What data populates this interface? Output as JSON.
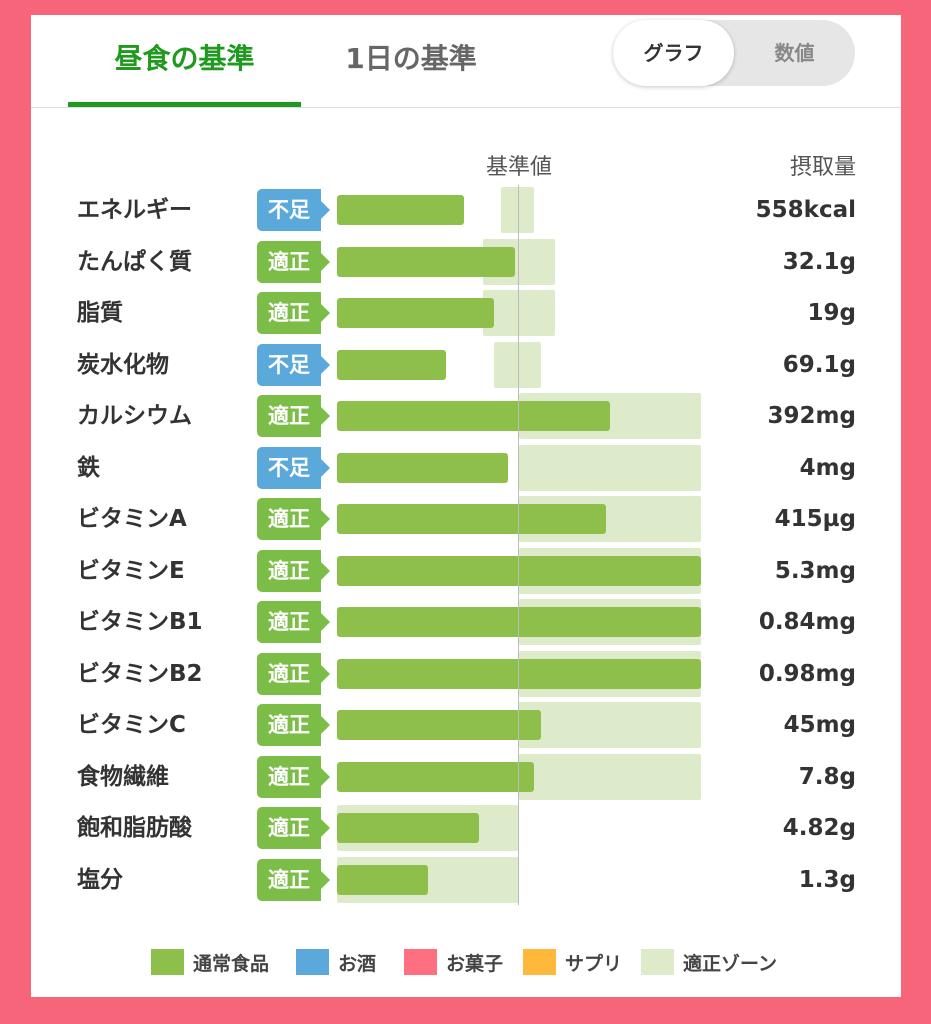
{
  "tabs": [
    {
      "label": "昼食の基準",
      "active": true
    },
    {
      "label": "1日の基準",
      "active": false
    }
  ],
  "view_toggle": {
    "graph_label": "グラフ",
    "number_label": "数値",
    "selected": "グラフ"
  },
  "column_headers": {
    "baseline": "基準値",
    "intake": "摂取量"
  },
  "colors": {
    "accent_green": "#1f9a1f",
    "regular_food": "#8fbf4b",
    "alcohol": "#5ba8db",
    "sweets": "#ff6f7f",
    "supplement": "#ffb93a",
    "target_zone": "#ddebcb",
    "status_ok": "#7cbd47",
    "status_low": "#5ba8db"
  },
  "nutrients": [
    {
      "name": "エネルギー",
      "status": "不足",
      "status_type": "low",
      "intake": "558kcal",
      "fill_percent": 35,
      "zone_percent": [
        45,
        54
      ]
    },
    {
      "name": "たんぱく質",
      "status": "適正",
      "status_type": "ok",
      "intake": "32.1g",
      "fill_percent": 49,
      "zone_percent": [
        40,
        60
      ]
    },
    {
      "name": "脂質",
      "status": "適正",
      "status_type": "ok",
      "intake": "19g",
      "fill_percent": 43,
      "zone_percent": [
        40,
        60
      ]
    },
    {
      "name": "炭水化物",
      "status": "不足",
      "status_type": "low",
      "intake": "69.1g",
      "fill_percent": 30,
      "zone_percent": [
        43,
        56
      ]
    },
    {
      "name": "カルシウム",
      "status": "適正",
      "status_type": "ok",
      "intake": "392mg",
      "fill_percent": 75,
      "zone_percent": [
        50,
        100
      ]
    },
    {
      "name": "鉄",
      "status": "不足",
      "status_type": "low",
      "intake": "4mg",
      "fill_percent": 47,
      "zone_percent": [
        50,
        100
      ]
    },
    {
      "name": "ビタミンA",
      "status": "適正",
      "status_type": "ok",
      "intake": "415µg",
      "fill_percent": 74,
      "zone_percent": [
        50,
        100
      ]
    },
    {
      "name": "ビタミンE",
      "status": "適正",
      "status_type": "ok",
      "intake": "5.3mg",
      "fill_percent": 100,
      "zone_percent": [
        50,
        100
      ]
    },
    {
      "name": "ビタミンB1",
      "status": "適正",
      "status_type": "ok",
      "intake": "0.84mg",
      "fill_percent": 100,
      "zone_percent": [
        50,
        100
      ]
    },
    {
      "name": "ビタミンB2",
      "status": "適正",
      "status_type": "ok",
      "intake": "0.98mg",
      "fill_percent": 100,
      "zone_percent": [
        50,
        100
      ]
    },
    {
      "name": "ビタミンC",
      "status": "適正",
      "status_type": "ok",
      "intake": "45mg",
      "fill_percent": 56,
      "zone_percent": [
        50,
        100
      ]
    },
    {
      "name": "食物繊維",
      "status": "適正",
      "status_type": "ok",
      "intake": "7.8g",
      "fill_percent": 54,
      "zone_percent": [
        50,
        100
      ]
    },
    {
      "name": "飽和脂肪酸",
      "status": "適正",
      "status_type": "ok",
      "intake": "4.82g",
      "fill_percent": 39,
      "zone_percent": [
        0,
        50
      ]
    },
    {
      "name": "塩分",
      "status": "適正",
      "status_type": "ok",
      "intake": "1.3g",
      "fill_percent": 25,
      "zone_percent": [
        0,
        50
      ]
    }
  ],
  "legend": [
    {
      "label": "通常食品",
      "color": "#8fbf4b"
    },
    {
      "label": "お酒",
      "color": "#5ba8db"
    },
    {
      "label": "お菓子",
      "color": "#ff6f7f"
    },
    {
      "label": "サプリ",
      "color": "#ffb93a"
    },
    {
      "label": "適正ゾーン",
      "color": "#ddebcb"
    }
  ]
}
